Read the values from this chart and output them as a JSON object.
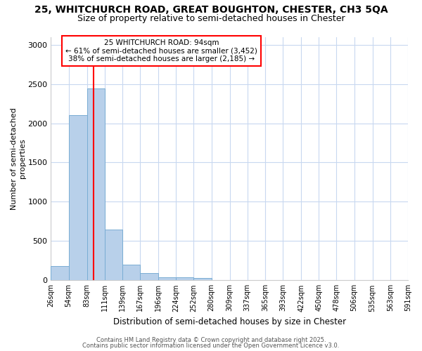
{
  "title": "25, WHITCHURCH ROAD, GREAT BOUGHTON, CHESTER, CH3 5QA",
  "subtitle": "Size of property relative to semi-detached houses in Chester",
  "xlabel": "Distribution of semi-detached houses by size in Chester",
  "ylabel": "Number of semi-detached\nproperties",
  "bar_color": "#b8d0ea",
  "bar_edge_color": "#7aadd4",
  "plot_bg_color": "#ffffff",
  "fig_bg_color": "#ffffff",
  "grid_color": "#c8d8f0",
  "red_line_x": 94,
  "annotation_title": "25 WHITCHURCH ROAD: 94sqm",
  "annotation_line1": "← 61% of semi-detached houses are smaller (3,452)",
  "annotation_line2": "38% of semi-detached houses are larger (2,185) →",
  "bin_edges": [
    26,
    54,
    83,
    111,
    139,
    167,
    196,
    224,
    252,
    280,
    309,
    337,
    365,
    393,
    422,
    450,
    478,
    506,
    535,
    563,
    591
  ],
  "bar_heights": [
    180,
    2100,
    2440,
    650,
    195,
    90,
    40,
    35,
    30,
    0,
    0,
    0,
    0,
    0,
    0,
    0,
    0,
    0,
    0,
    0
  ],
  "ylim": [
    0,
    3100
  ],
  "yticks": [
    0,
    500,
    1000,
    1500,
    2000,
    2500,
    3000
  ],
  "footer1": "Contains HM Land Registry data © Crown copyright and database right 2025.",
  "footer2": "Contains public sector information licensed under the Open Government Licence v3.0."
}
